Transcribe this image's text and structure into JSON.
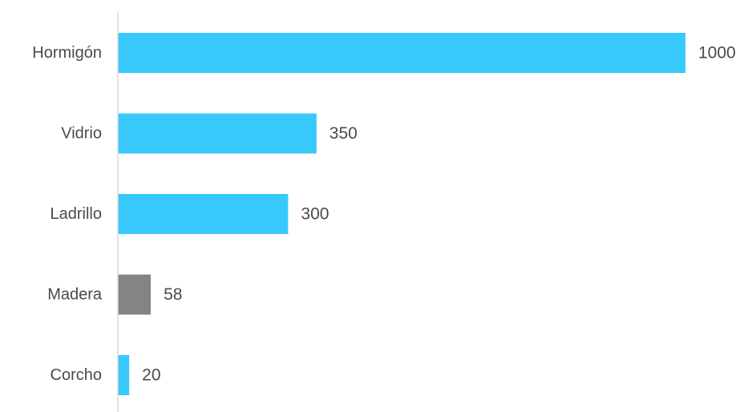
{
  "chart_data": {
    "type": "bar",
    "orientation": "horizontal",
    "categories": [
      "Hormigón",
      "Vidrio",
      "Ladrillo",
      "Madera",
      "Corcho"
    ],
    "values": [
      1000,
      350,
      300,
      58,
      20
    ],
    "data_labels": [
      "1000",
      "350",
      "300",
      "58",
      "20"
    ],
    "bar_colors": [
      "#38c9fc",
      "#38c9fc",
      "#38c9fc",
      "#848484",
      "#38c9fc"
    ],
    "axis_color": "#d9d9d9",
    "xlim": [
      0,
      1000
    ],
    "grid": false,
    "legend": "none"
  }
}
